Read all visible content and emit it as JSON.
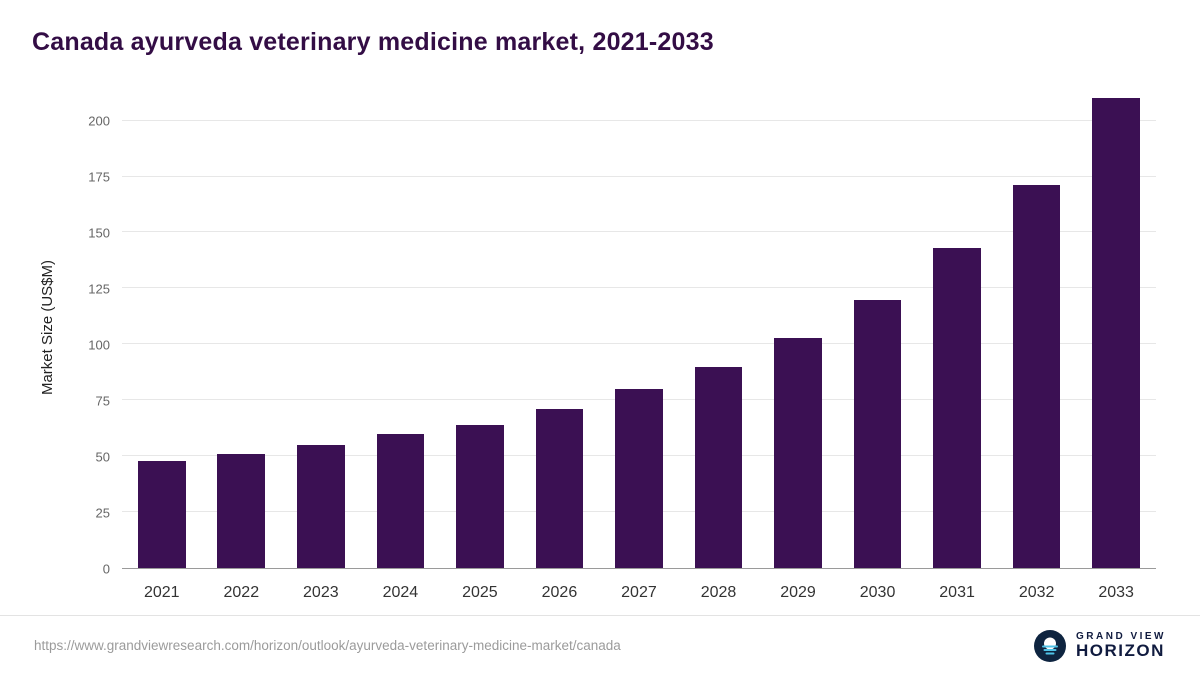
{
  "title": "Canada ayurveda veterinary medicine market, 2021-2033",
  "chart_data": {
    "type": "bar",
    "title": "Canada ayurveda veterinary medicine market, 2021-2033",
    "categories": [
      "2021",
      "2022",
      "2023",
      "2024",
      "2025",
      "2026",
      "2027",
      "2028",
      "2029",
      "2030",
      "2031",
      "2032",
      "2033"
    ],
    "values": [
      48,
      51,
      55,
      60,
      64,
      71,
      80,
      90,
      103,
      120,
      143,
      171,
      210
    ],
    "xlabel": "",
    "ylabel": "Market Size (US$M)",
    "ylim": [
      0,
      215
    ],
    "yticks": [
      0,
      25,
      50,
      75,
      100,
      125,
      150,
      175,
      200
    ],
    "grid": "horizontal",
    "legend": "none",
    "bar_color": "#3b1053"
  },
  "footer": {
    "source_url": "https://www.grandviewresearch.com/horizon/outlook/ayurveda-veterinary-medicine-market/canada"
  },
  "logo": {
    "icon": "horizon-sun-icon",
    "line1": "GRAND VIEW",
    "line2": "HORIZON",
    "navy": "#0e2440",
    "light_blue": "#4fc3e8"
  }
}
